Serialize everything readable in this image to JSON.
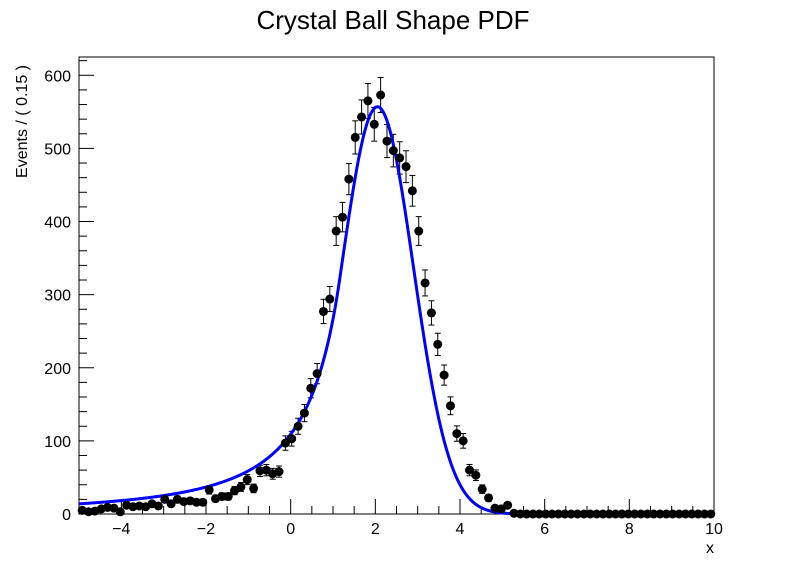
{
  "chart_data": {
    "type": "scatter",
    "title": "Crystal Ball Shape PDF",
    "xlabel": "x",
    "ylabel": "Events / ( 0.15 )",
    "xlim": [
      -5,
      10
    ],
    "ylim": [
      0,
      625
    ],
    "x_ticks": [
      -4,
      -2,
      0,
      2,
      4,
      6,
      8,
      10
    ],
    "y_ticks": [
      0,
      100,
      200,
      300,
      400,
      500,
      600
    ],
    "x_tick_labels": [
      "−4",
      "−2",
      "0",
      "2",
      "4",
      "6",
      "8",
      "10"
    ],
    "y_tick_labels": [
      "0",
      "100",
      "200",
      "300",
      "400",
      "500",
      "600"
    ],
    "x_minor_step": 0.5,
    "y_minor_step": 20,
    "grid": false,
    "colors": {
      "data": "#000000",
      "curve": "#0000ff"
    },
    "series": [
      {
        "type": "points_with_errors",
        "x": [
          -4.925,
          -4.775,
          -4.625,
          -4.475,
          -4.325,
          -4.175,
          -4.025,
          -3.875,
          -3.725,
          -3.575,
          -3.425,
          -3.275,
          -3.125,
          -2.975,
          -2.825,
          -2.675,
          -2.525,
          -2.375,
          -2.225,
          -2.075,
          -1.925,
          -1.775,
          -1.625,
          -1.475,
          -1.325,
          -1.175,
          -1.025,
          -0.875,
          -0.725,
          -0.575,
          -0.425,
          -0.275,
          -0.125,
          0.025,
          0.175,
          0.325,
          0.475,
          0.625,
          0.775,
          0.925,
          1.075,
          1.225,
          1.375,
          1.525,
          1.675,
          1.825,
          1.975,
          2.125,
          2.275,
          2.425,
          2.575,
          2.725,
          2.875,
          3.025,
          3.175,
          3.325,
          3.475,
          3.625,
          3.775,
          3.925,
          4.075,
          4.225,
          4.375,
          4.525,
          4.675,
          4.825,
          4.975,
          5.125,
          5.275,
          5.425,
          5.575,
          5.725,
          5.875,
          6.025,
          6.175,
          6.325,
          6.475,
          6.625,
          6.775,
          6.925,
          7.075,
          7.225,
          7.375,
          7.525,
          7.675,
          7.825,
          7.975,
          8.125,
          8.275,
          8.425,
          8.575,
          8.725,
          8.875,
          9.025,
          9.175,
          9.325,
          9.475,
          9.625,
          9.775,
          9.925
        ],
        "y": [
          5,
          3,
          4,
          7,
          9,
          8,
          3,
          12,
          10,
          11,
          10,
          14,
          11,
          20,
          14,
          20,
          17,
          18,
          16,
          16,
          33,
          21,
          24,
          24,
          32,
          37,
          47,
          35,
          59,
          60,
          55,
          58,
          97,
          103,
          120,
          138,
          172,
          192,
          277,
          294,
          387,
          406,
          458,
          515,
          543,
          565,
          533,
          573,
          510,
          497,
          487,
          475,
          442,
          387,
          316,
          275,
          232,
          190,
          148,
          110,
          100,
          60,
          53,
          34,
          22,
          8,
          7,
          12,
          1,
          0,
          0,
          0,
          0,
          0,
          0,
          0,
          0,
          0,
          0,
          0,
          0,
          0,
          0,
          0,
          0,
          0,
          0,
          0,
          0,
          0,
          0,
          0,
          0,
          0,
          0,
          0,
          0,
          0,
          0,
          0
        ]
      },
      {
        "type": "curve",
        "model": "crystal_ball",
        "mean": 2.05,
        "sigma": 0.85,
        "alpha": 1.05,
        "n": 2.0,
        "peak": 557
      }
    ]
  }
}
